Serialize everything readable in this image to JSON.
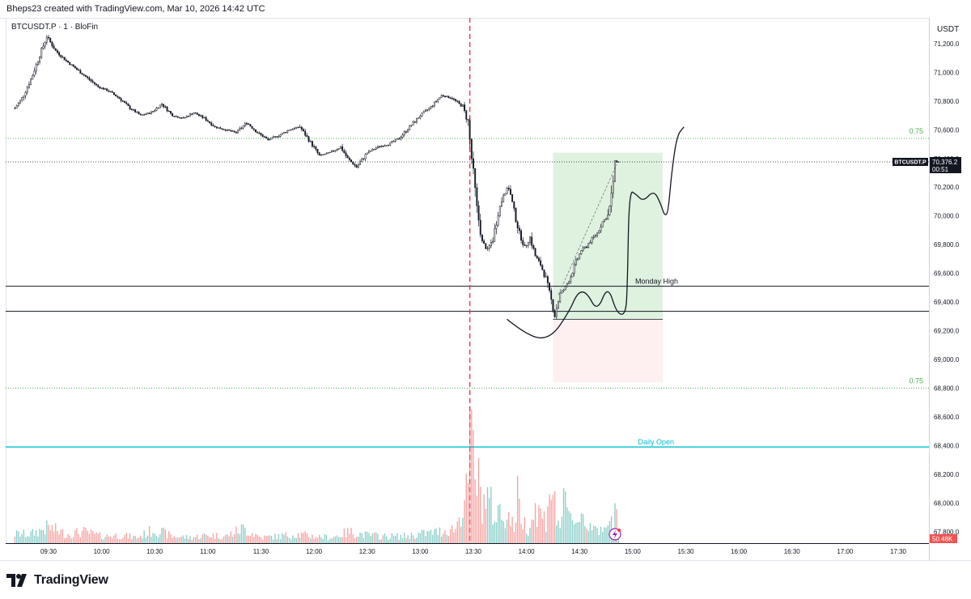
{
  "header": {
    "credit": "Bheps23 created with TradingView.com, Mar 10, 2026 14:42 UTC"
  },
  "symbol": {
    "title": "BTCUSDT.P · 1 · BloFin",
    "currency": "USDT"
  },
  "price_tag": {
    "symbol": "BTCUSDT.P",
    "price": "70,376.2",
    "countdown": "00:51"
  },
  "volume_tag": {
    "value": "50.48K"
  },
  "footer": {
    "logo_text": "TradingView"
  },
  "colors": {
    "up": "#131722",
    "down": "#131722",
    "vol_up": "#26a69a",
    "vol_down": "#ef5350",
    "session_line": "#f23645",
    "daily_open": "#00bcd4",
    "fib": "#4caf50",
    "target_zone": "#4caf50",
    "stop_zone": "#f23645"
  },
  "chart_data": {
    "type": "candlestick",
    "y_axis": {
      "ylim": [
        67720,
        71380
      ],
      "ticks": [
        71200,
        71000,
        70800,
        70600,
        70400,
        70200,
        70000,
        69800,
        69600,
        69400,
        69200,
        69000,
        68800,
        68600,
        68400,
        68200,
        68000,
        67800
      ],
      "tick_labels": [
        "71,200.0",
        "71,000.0",
        "70,800.0",
        "70,600.0",
        "70,400.0",
        "70,200.0",
        "70,000.0",
        "69,800.0",
        "69,600.0",
        "69,400.0",
        "69,200.0",
        "69,000.0",
        "68,800.0",
        "68,600.0",
        "68,400.0",
        "68,200.0",
        "68,000.0",
        "67,800.0"
      ]
    },
    "x_axis": {
      "xlim_minutes": [
        550,
        1070
      ],
      "ticks": [
        570,
        600,
        630,
        660,
        690,
        720,
        750,
        780,
        810,
        840,
        870,
        900,
        930,
        960,
        990,
        1020,
        1050
      ],
      "tick_labels": [
        "09:30",
        "10:00",
        "10:30",
        "11:00",
        "11:30",
        "12:00",
        "12:30",
        "13:00",
        "13:30",
        "14:00",
        "14:30",
        "15:00",
        "15:30",
        "16:00",
        "16:30",
        "17:00",
        "17:30"
      ]
    },
    "price_points": [
      [
        551,
        70750
      ],
      [
        555,
        70820
      ],
      [
        560,
        70950
      ],
      [
        565,
        71120
      ],
      [
        569,
        71250
      ],
      [
        574,
        71150
      ],
      [
        580,
        71080
      ],
      [
        586,
        71020
      ],
      [
        592,
        70960
      ],
      [
        598,
        70900
      ],
      [
        604,
        70870
      ],
      [
        610,
        70820
      ],
      [
        616,
        70750
      ],
      [
        622,
        70700
      ],
      [
        628,
        70720
      ],
      [
        634,
        70780
      ],
      [
        640,
        70700
      ],
      [
        646,
        70680
      ],
      [
        652,
        70720
      ],
      [
        658,
        70680
      ],
      [
        664,
        70620
      ],
      [
        670,
        70600
      ],
      [
        676,
        70580
      ],
      [
        682,
        70650
      ],
      [
        688,
        70580
      ],
      [
        694,
        70530
      ],
      [
        700,
        70560
      ],
      [
        706,
        70600
      ],
      [
        712,
        70620
      ],
      [
        717,
        70530
      ],
      [
        723,
        70420
      ],
      [
        729,
        70440
      ],
      [
        735,
        70480
      ],
      [
        739,
        70400
      ],
      [
        744,
        70340
      ],
      [
        750,
        70440
      ],
      [
        756,
        70480
      ],
      [
        762,
        70500
      ],
      [
        768,
        70540
      ],
      [
        774,
        70620
      ],
      [
        780,
        70700
      ],
      [
        786,
        70760
      ],
      [
        792,
        70840
      ],
      [
        798,
        70820
      ],
      [
        804,
        70760
      ],
      [
        807,
        70650
      ],
      [
        809,
        70400
      ],
      [
        812,
        70050
      ],
      [
        815,
        69820
      ],
      [
        818,
        69760
      ],
      [
        821,
        69840
      ],
      [
        824,
        70020
      ],
      [
        827,
        70150
      ],
      [
        830,
        70200
      ],
      [
        833,
        70030
      ],
      [
        836,
        69880
      ],
      [
        839,
        69780
      ],
      [
        842,
        69850
      ],
      [
        845,
        69720
      ],
      [
        848,
        69660
      ],
      [
        851,
        69560
      ],
      [
        854,
        69410
      ],
      [
        856,
        69310
      ],
      [
        859,
        69460
      ],
      [
        862,
        69500
      ],
      [
        865,
        69580
      ],
      [
        868,
        69680
      ],
      [
        871,
        69760
      ],
      [
        874,
        69790
      ],
      [
        877,
        69840
      ],
      [
        880,
        69880
      ],
      [
        883,
        69960
      ],
      [
        886,
        70000
      ],
      [
        888,
        70120
      ],
      [
        890,
        70380
      ],
      [
        892,
        70376
      ]
    ],
    "volume_max": 100000,
    "volume_points": [
      [
        560,
        8
      ],
      [
        570,
        14
      ],
      [
        580,
        8
      ],
      [
        590,
        10
      ],
      [
        600,
        6
      ],
      [
        610,
        7
      ],
      [
        620,
        5
      ],
      [
        630,
        12
      ],
      [
        640,
        6
      ],
      [
        650,
        5
      ],
      [
        660,
        7
      ],
      [
        670,
        6
      ],
      [
        680,
        13
      ],
      [
        690,
        5
      ],
      [
        700,
        6
      ],
      [
        710,
        8
      ],
      [
        720,
        6
      ],
      [
        730,
        5
      ],
      [
        740,
        10
      ],
      [
        750,
        7
      ],
      [
        760,
        6
      ],
      [
        770,
        6
      ],
      [
        780,
        8
      ],
      [
        790,
        10
      ],
      [
        800,
        13
      ],
      [
        806,
        42
      ],
      [
        809,
        100
      ],
      [
        811,
        62
      ],
      [
        813,
        52
      ],
      [
        815,
        35
      ],
      [
        817,
        40
      ],
      [
        819,
        38
      ],
      [
        821,
        28
      ],
      [
        823,
        20
      ],
      [
        825,
        32
      ],
      [
        827,
        22
      ],
      [
        829,
        30
      ],
      [
        831,
        18
      ],
      [
        833,
        15
      ],
      [
        835,
        40
      ],
      [
        837,
        25
      ],
      [
        839,
        17
      ],
      [
        841,
        14
      ],
      [
        843,
        22
      ],
      [
        845,
        30
      ],
      [
        847,
        28
      ],
      [
        849,
        23
      ],
      [
        851,
        20
      ],
      [
        853,
        54
      ],
      [
        855,
        42
      ],
      [
        857,
        22
      ],
      [
        859,
        18
      ],
      [
        861,
        32
      ],
      [
        863,
        28
      ],
      [
        865,
        20
      ],
      [
        867,
        24
      ],
      [
        869,
        18
      ],
      [
        871,
        32
      ],
      [
        873,
        15
      ],
      [
        875,
        14
      ],
      [
        877,
        18
      ],
      [
        879,
        22
      ],
      [
        881,
        10
      ],
      [
        883,
        9
      ],
      [
        885,
        12
      ],
      [
        887,
        16
      ],
      [
        889,
        20
      ],
      [
        891,
        48
      ]
    ],
    "horizontal_levels": [
      {
        "name": "fib-upper",
        "price": 70540,
        "label": "0.75"
      },
      {
        "name": "monday-high",
        "price": 69510,
        "label": "Monday High"
      },
      {
        "name": "support-low",
        "price": 69335,
        "label": ""
      },
      {
        "name": "fib-lower",
        "price": 68800,
        "label": "0.75"
      },
      {
        "name": "daily-open",
        "price": 68390,
        "label": "Daily Open"
      }
    ],
    "current_price": 70376.2,
    "session_marker_minute": 808,
    "position": {
      "start_minute": 855,
      "end_minute": 917,
      "target": 70440,
      "entry": 69280,
      "stop": 68840
    },
    "projection_path": [
      [
        829,
        69280
      ],
      [
        842,
        69150
      ],
      [
        854,
        69150
      ],
      [
        864,
        69330
      ],
      [
        869,
        69470
      ],
      [
        874,
        69470
      ],
      [
        880,
        69330
      ],
      [
        886,
        69520
      ],
      [
        891,
        69320
      ],
      [
        896,
        69310
      ],
      [
        897,
        69500
      ],
      [
        898,
        70180
      ],
      [
        902,
        70150
      ],
      [
        906,
        70100
      ],
      [
        912,
        70180
      ],
      [
        916,
        70080
      ],
      [
        918,
        70000
      ],
      [
        920,
        70020
      ],
      [
        922,
        70300
      ],
      [
        925,
        70560
      ],
      [
        929,
        70620
      ]
    ]
  }
}
